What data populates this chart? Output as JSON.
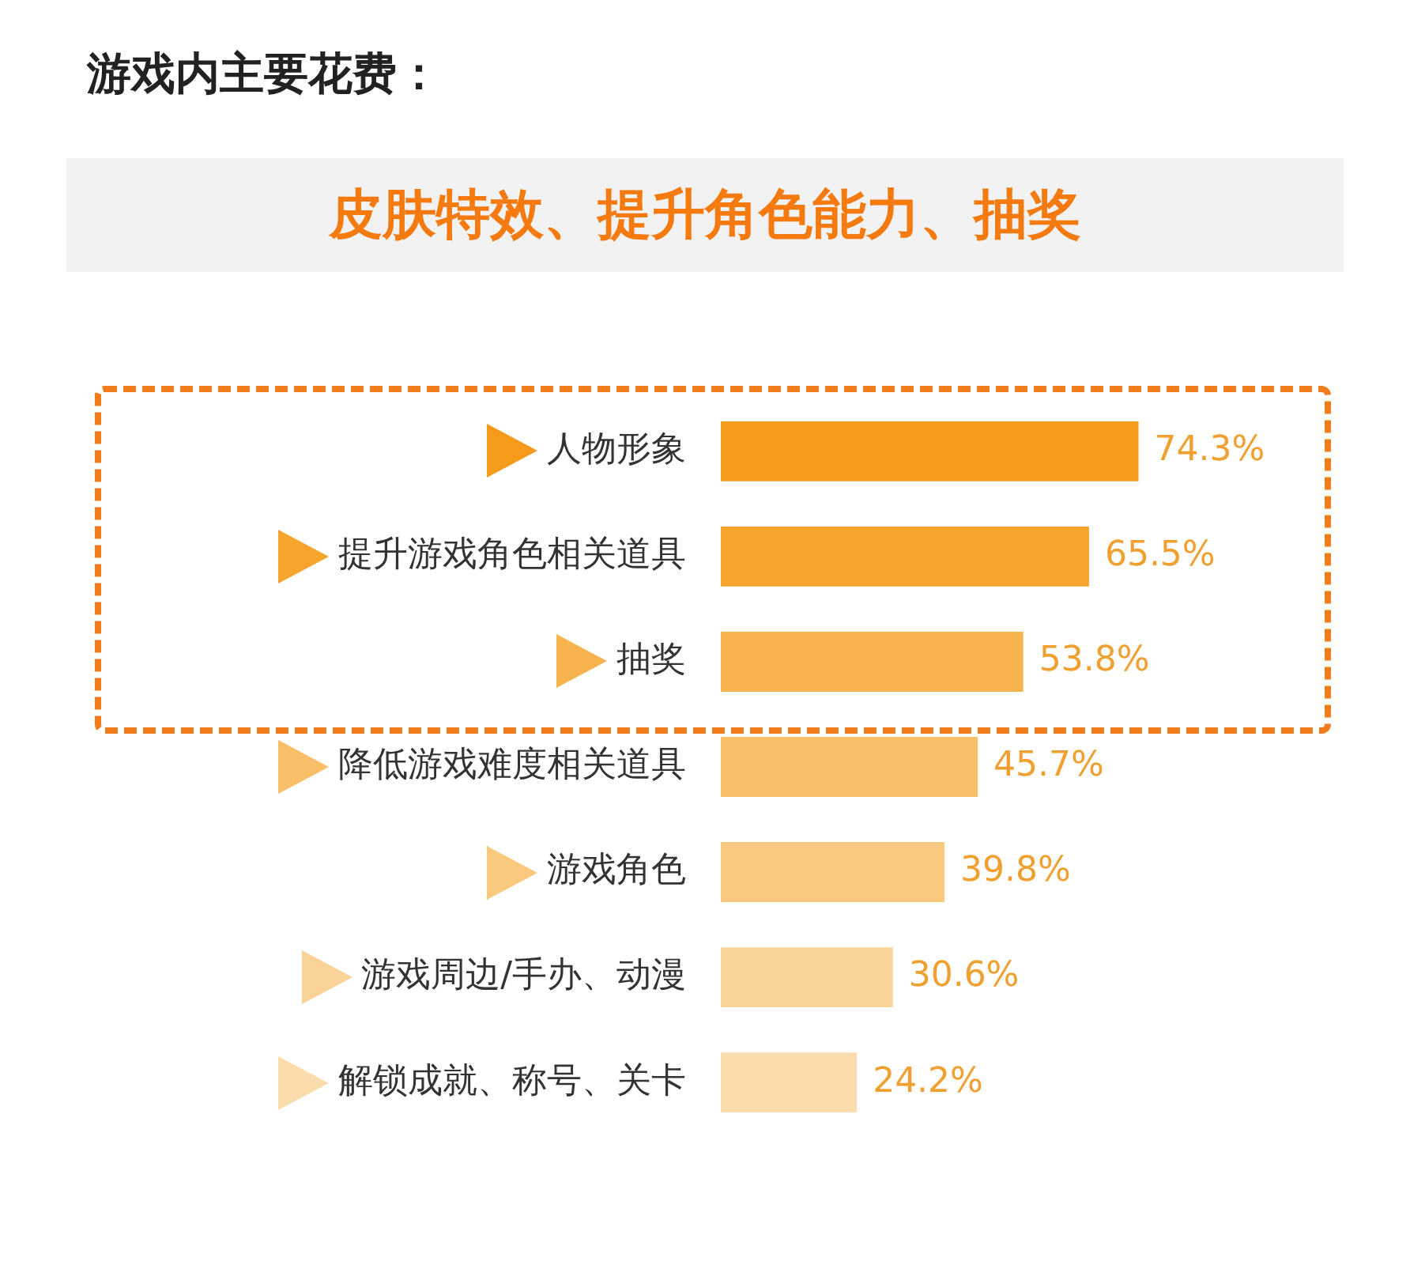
{
  "chart_data": {
    "type": "bar",
    "orientation": "horizontal",
    "title": "游戏内主要花费：",
    "subtitle": "皮肤特效、提升角色能力、抽奖",
    "categories": [
      "人物形象",
      "提升游戏角色相关道具",
      "抽奖",
      "降低游戏难度相关道具",
      "游戏角色",
      "游戏周边/手办、动漫",
      "解锁成就、称号、关卡"
    ],
    "values": [
      74.3,
      65.5,
      53.8,
      45.7,
      39.8,
      30.6,
      24.2
    ],
    "colors": [
      "#f59a1b",
      "#f6a42c",
      "#f7b44e",
      "#f8bf68",
      "#f9c97f",
      "#fad399",
      "#fbdcad"
    ],
    "value_labels": [
      "74.3%",
      "65.5%",
      "53.8%",
      "45.7%",
      "39.8%",
      "30.6%",
      "24.2%"
    ]
  }
}
